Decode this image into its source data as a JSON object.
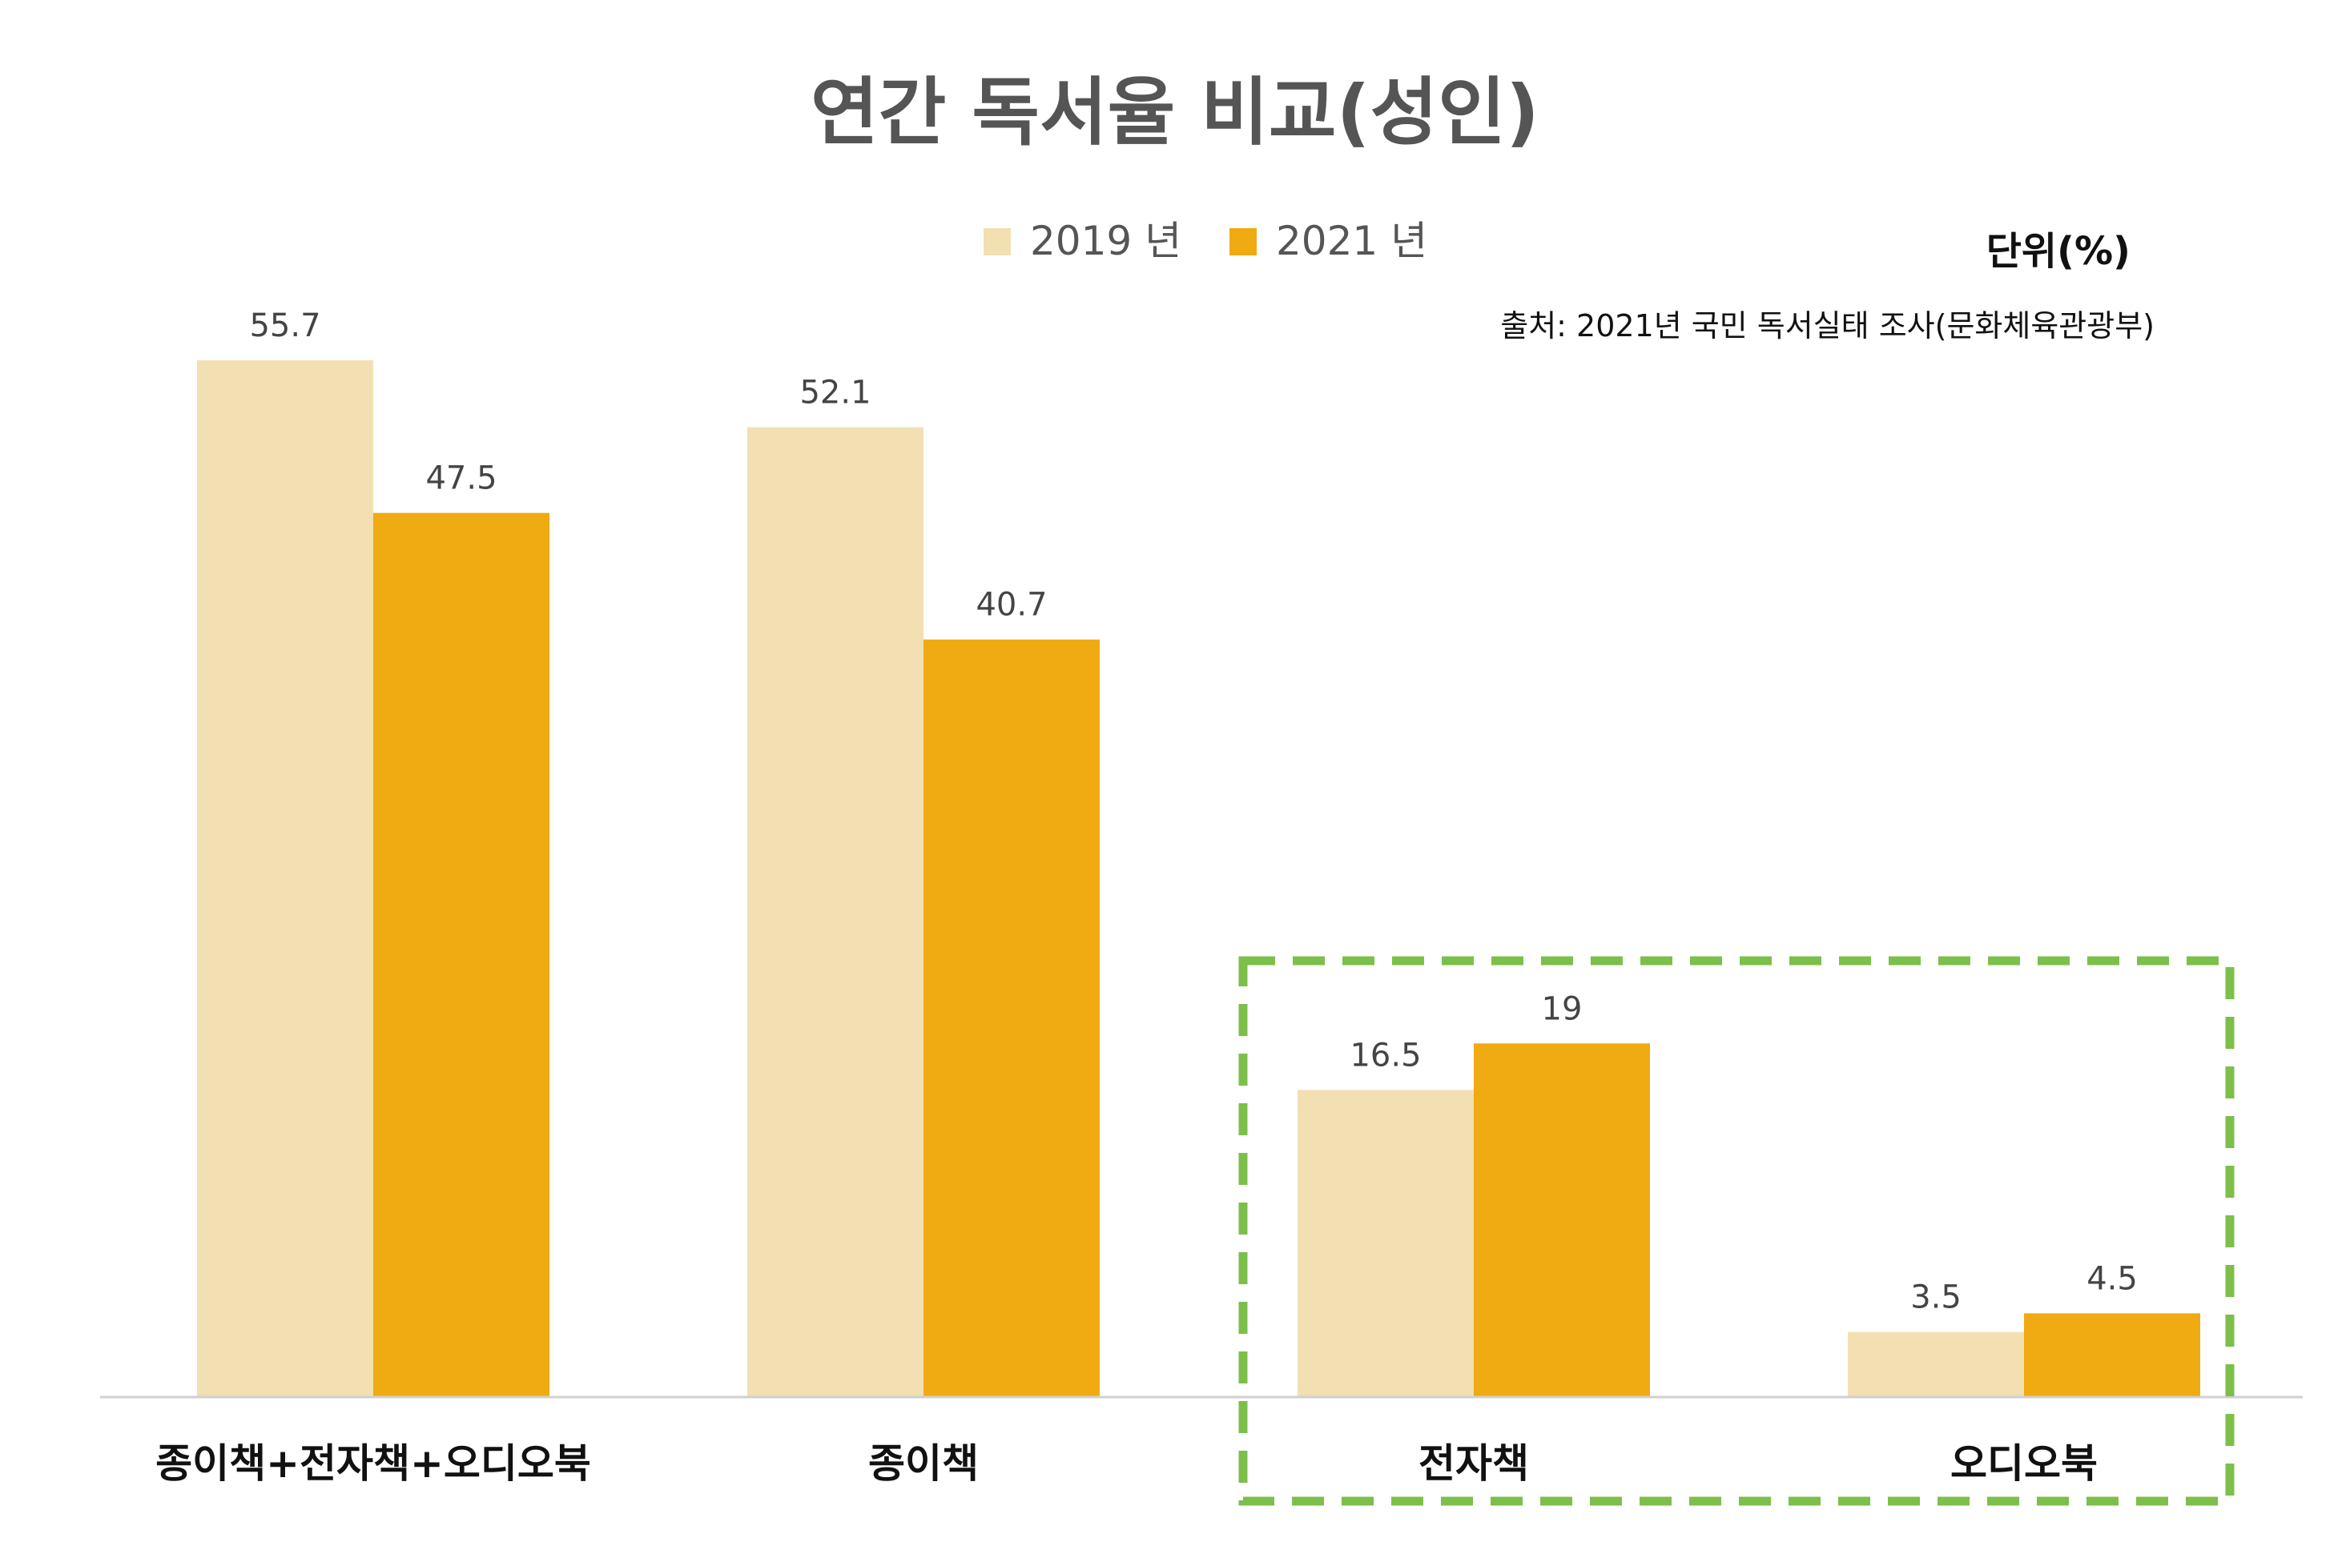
{
  "chart_data": {
    "type": "bar",
    "title": "연간 독서율 비교(성인)",
    "unit_label": "단위(%)",
    "source": "출처: 2021년 국민 독서실태 조사(문화체육관광부)",
    "categories": [
      "종이책+전자책+오디오북",
      "종이책",
      "전자책",
      "오디오북"
    ],
    "series": [
      {
        "name": "2019 년",
        "values": [
          55.7,
          52.1,
          16.5,
          3.5
        ],
        "color": "#f2e0b3",
        "labels": [
          "55.7",
          "52.1",
          "16.5",
          "3.5"
        ]
      },
      {
        "name": "2021 년",
        "values": [
          47.5,
          40.7,
          19,
          4.5
        ],
        "color": "#f0aa12",
        "labels": [
          "47.5",
          "40.7",
          "19",
          "4.5"
        ]
      }
    ],
    "ylim": [
      0,
      55.7
    ],
    "grid": false,
    "legend_position": "top",
    "highlight": {
      "categories": [
        "전자책",
        "오디오북"
      ],
      "color": "#7cbf4a",
      "style": "dashed"
    },
    "colors": {
      "title": "#555555",
      "label": "#444444",
      "axis": "#d0d0d0",
      "category": "#111111"
    }
  }
}
